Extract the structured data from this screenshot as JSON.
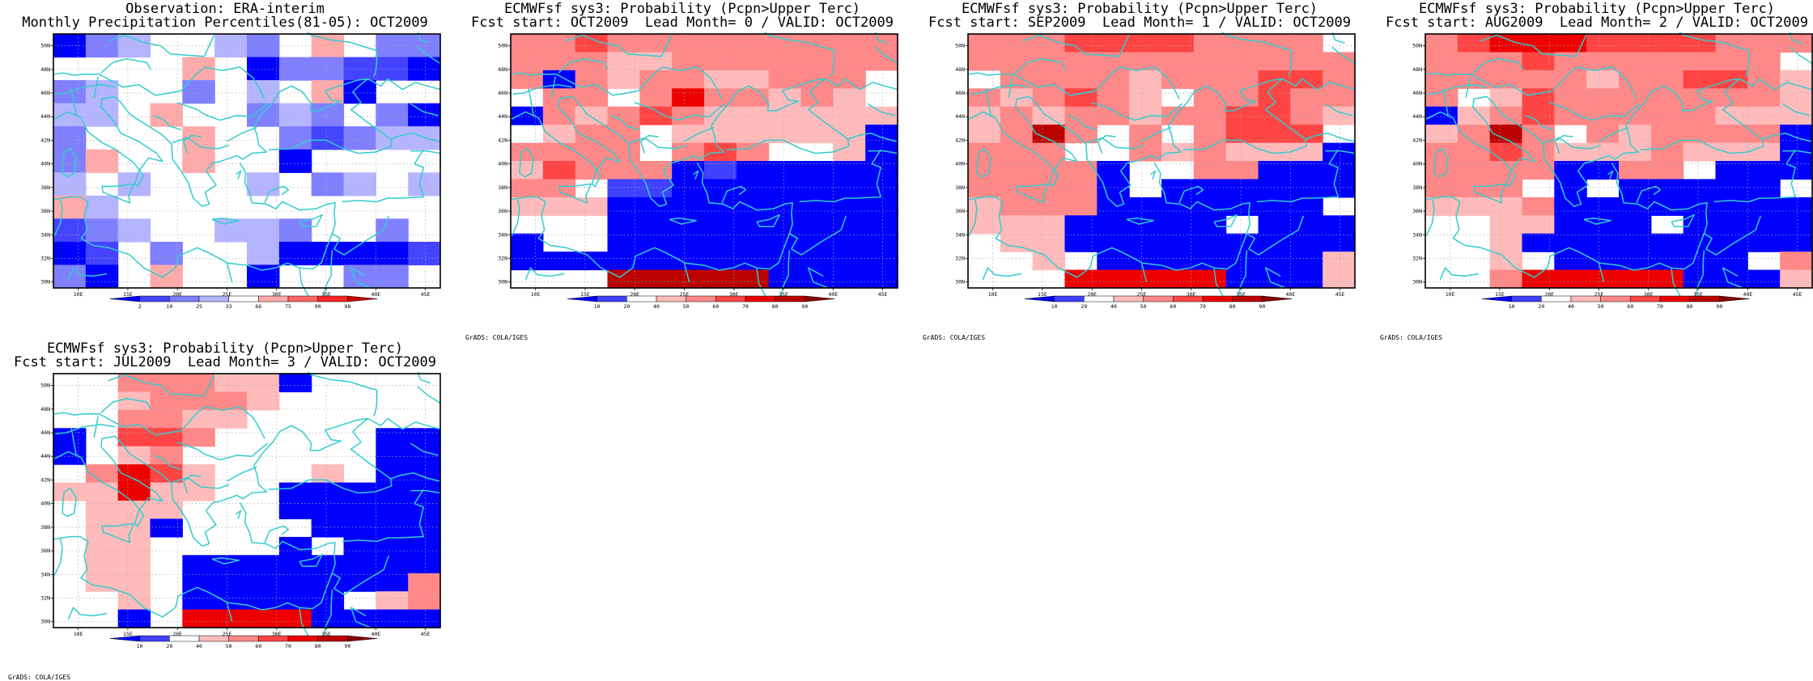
{
  "colors": {
    "coast": "#33cccc",
    "grid": "#aaaaaa",
    "frame": "#000000"
  },
  "axes": {
    "lat_labels": [
      "30N",
      "32N",
      "34N",
      "36N",
      "38N",
      "40N",
      "42N",
      "44N",
      "46N",
      "48N",
      "50N"
    ],
    "lon_labels": [
      "10E",
      "15E",
      "20E",
      "25E",
      "30E",
      "35E",
      "40E",
      "45E"
    ]
  },
  "obs_legend": {
    "labels": [
      "2",
      "10",
      "25",
      "33",
      "66",
      "75",
      "90",
      "98"
    ],
    "colors": [
      "#0000ff",
      "#4444ff",
      "#8080ff",
      "#b4b4ff",
      "#ffffff",
      "#ffaaaa",
      "#ff6666",
      "#ff2222",
      "#cc0000"
    ]
  },
  "prob_legend": {
    "labels": [
      "10",
      "20",
      "40",
      "50",
      "60",
      "70",
      "80",
      "90"
    ],
    "colors": [
      "#0000ff",
      "#4040ff",
      "#ffffff",
      "#ffbbbb",
      "#ff8888",
      "#ff4444",
      "#ee0000",
      "#bb0000",
      "#880000"
    ]
  },
  "credit": "GrADS: COLA/IGES",
  "panels": [
    {
      "title1": "Observation: ERA-interim",
      "title2": "Monthly Precipitation Percentiles(81-05): OCT2009",
      "has_credit": false,
      "legend": "obs",
      "grid": [
        [
          0,
          2,
          3,
          4,
          4,
          3,
          2,
          4,
          5,
          4,
          2,
          2
        ],
        [
          4,
          4,
          4,
          4,
          5,
          4,
          0,
          2,
          2,
          1,
          1,
          0
        ],
        [
          2,
          3,
          4,
          4,
          2,
          4,
          3,
          4,
          5,
          0,
          4,
          4
        ],
        [
          3,
          3,
          4,
          5,
          4,
          4,
          2,
          3,
          2,
          4,
          2,
          0
        ],
        [
          2,
          4,
          4,
          4,
          5,
          4,
          4,
          2,
          1,
          2,
          3,
          3
        ],
        [
          2,
          5,
          4,
          4,
          5,
          4,
          4,
          0,
          4,
          4,
          4,
          4
        ],
        [
          3,
          4,
          3,
          4,
          4,
          4,
          3,
          4,
          2,
          3,
          4,
          3
        ],
        [
          5,
          3,
          4,
          4,
          4,
          4,
          4,
          4,
          4,
          4,
          4,
          4
        ],
        [
          1,
          2,
          3,
          4,
          4,
          3,
          3,
          2,
          4,
          4,
          2,
          4
        ],
        [
          0,
          1,
          4,
          2,
          4,
          4,
          3,
          0,
          0,
          0,
          0,
          1
        ],
        [
          2,
          0,
          4,
          5,
          4,
          4,
          0,
          4,
          4,
          2,
          2,
          4
        ]
      ]
    },
    {
      "title1": "ECMWFsf sys3: Probability (Pcpn>Upper Terc)",
      "title2": "Fcst start: OCT2009  Lead Month= 0 / VALID: OCT2009",
      "has_credit": true,
      "legend": "prob",
      "grid": [
        [
          4,
          4,
          5,
          4,
          4,
          4,
          4,
          4,
          4,
          4,
          4,
          4
        ],
        [
          4,
          4,
          4,
          3,
          3,
          4,
          4,
          4,
          4,
          4,
          4,
          4
        ],
        [
          4,
          0,
          4,
          3,
          4,
          4,
          3,
          3,
          4,
          4,
          4,
          2
        ],
        [
          2,
          4,
          4,
          2,
          4,
          6,
          4,
          4,
          3,
          4,
          3,
          2
        ],
        [
          0,
          4,
          3,
          4,
          5,
          4,
          3,
          3,
          3,
          3,
          3,
          3
        ],
        [
          2,
          3,
          4,
          4,
          2,
          3,
          3,
          3,
          3,
          3,
          3,
          0
        ],
        [
          4,
          4,
          4,
          4,
          2,
          4,
          5,
          4,
          2,
          2,
          3,
          0
        ],
        [
          3,
          5,
          4,
          4,
          4,
          0,
          1,
          0,
          0,
          0,
          0,
          0
        ],
        [
          4,
          4,
          2,
          1,
          1,
          0,
          0,
          0,
          0,
          0,
          0,
          0
        ],
        [
          3,
          3,
          3,
          0,
          0,
          0,
          0,
          0,
          0,
          0,
          0,
          0
        ],
        [
          2,
          2,
          2,
          0,
          0,
          0,
          0,
          0,
          0,
          0,
          0,
          0
        ],
        [
          0,
          2,
          2,
          0,
          0,
          0,
          0,
          0,
          0,
          0,
          0,
          0
        ],
        [
          0,
          0,
          0,
          0,
          0,
          0,
          0,
          0,
          0,
          0,
          0,
          0
        ],
        [
          2,
          2,
          2,
          7,
          7,
          7,
          7,
          7,
          0,
          0,
          0,
          0
        ]
      ]
    },
    {
      "title1": "ECMWFsf sys3: Probability (Pcpn>Upper Terc)",
      "title2": "Fcst start: SEP2009  Lead Month= 1 / VALID: OCT2009",
      "has_credit": true,
      "legend": "prob",
      "grid": [
        [
          4,
          4,
          4,
          5,
          5,
          5,
          5,
          4,
          4,
          4,
          4,
          2
        ],
        [
          4,
          4,
          4,
          4,
          4,
          4,
          4,
          4,
          4,
          4,
          4,
          4
        ],
        [
          2,
          4,
          4,
          4,
          4,
          3,
          4,
          4,
          4,
          5,
          5,
          4
        ],
        [
          4,
          3,
          4,
          5,
          4,
          3,
          2,
          4,
          4,
          5,
          4,
          4
        ],
        [
          3,
          4,
          3,
          4,
          4,
          3,
          4,
          4,
          5,
          5,
          4,
          3
        ],
        [
          3,
          4,
          7,
          4,
          2,
          4,
          2,
          4,
          5,
          5,
          5,
          2
        ],
        [
          4,
          4,
          4,
          2,
          2,
          4,
          3,
          4,
          3,
          3,
          3,
          0
        ],
        [
          4,
          4,
          4,
          4,
          0,
          2,
          2,
          4,
          4,
          0,
          0,
          0
        ],
        [
          4,
          4,
          4,
          4,
          0,
          2,
          0,
          0,
          0,
          0,
          0,
          0
        ],
        [
          3,
          4,
          4,
          4,
          0,
          0,
          0,
          0,
          0,
          0,
          0,
          2
        ],
        [
          3,
          3,
          3,
          0,
          0,
          0,
          0,
          0,
          2,
          0,
          0,
          0
        ],
        [
          2,
          3,
          3,
          0,
          0,
          0,
          0,
          0,
          0,
          0,
          0,
          0
        ],
        [
          2,
          2,
          3,
          2,
          0,
          0,
          0,
          0,
          0,
          0,
          0,
          3
        ],
        [
          2,
          2,
          2,
          6,
          6,
          6,
          6,
          6,
          0,
          0,
          0,
          3
        ]
      ]
    },
    {
      "title1": "ECMWFsf sys3: Probability (Pcpn>Upper Terc)",
      "title2": "Fcst start: AUG2009  Lead Month= 2 / VALID: OCT2009",
      "has_credit": true,
      "legend": "prob",
      "grid": [
        [
          4,
          5,
          6,
          6,
          6,
          5,
          5,
          5,
          5,
          4,
          4,
          4
        ],
        [
          4,
          4,
          4,
          5,
          4,
          4,
          4,
          4,
          4,
          4,
          4,
          2
        ],
        [
          4,
          4,
          4,
          4,
          4,
          3,
          4,
          4,
          5,
          5,
          4,
          3
        ],
        [
          4,
          2,
          3,
          5,
          4,
          4,
          4,
          4,
          4,
          4,
          4,
          3
        ],
        [
          0,
          3,
          4,
          5,
          4,
          4,
          4,
          4,
          4,
          3,
          3,
          3
        ],
        [
          3,
          4,
          7,
          4,
          2,
          4,
          3,
          4,
          4,
          4,
          4,
          0
        ],
        [
          4,
          4,
          5,
          4,
          3,
          3,
          3,
          4,
          3,
          3,
          3,
          0
        ],
        [
          4,
          4,
          4,
          4,
          0,
          0,
          4,
          4,
          2,
          0,
          0,
          0
        ],
        [
          4,
          4,
          4,
          2,
          0,
          2,
          0,
          0,
          0,
          0,
          0,
          2
        ],
        [
          3,
          3,
          3,
          4,
          0,
          0,
          0,
          0,
          0,
          0,
          0,
          0
        ],
        [
          2,
          2,
          3,
          3,
          0,
          0,
          0,
          2,
          0,
          0,
          0,
          0
        ],
        [
          2,
          2,
          3,
          0,
          0,
          0,
          0,
          0,
          0,
          0,
          0,
          0
        ],
        [
          2,
          2,
          3,
          2,
          0,
          0,
          0,
          0,
          0,
          0,
          2,
          4
        ],
        [
          2,
          2,
          4,
          6,
          6,
          6,
          6,
          6,
          0,
          0,
          0,
          3
        ]
      ]
    },
    {
      "title1": "ECMWFsf sys3: Probability (Pcpn>Upper Terc)",
      "title2": "Fcst start: JUL2009  Lead Month= 3 / VALID: OCT2009",
      "has_credit": true,
      "legend": "prob",
      "grid": [
        [
          2,
          2,
          4,
          4,
          4,
          3,
          3,
          0,
          2,
          2,
          2,
          2
        ],
        [
          2,
          2,
          3,
          4,
          4,
          4,
          3,
          2,
          2,
          2,
          2,
          2
        ],
        [
          2,
          2,
          4,
          4,
          3,
          3,
          2,
          2,
          2,
          2,
          2,
          2
        ],
        [
          0,
          2,
          5,
          5,
          4,
          2,
          2,
          2,
          2,
          2,
          0,
          0
        ],
        [
          0,
          2,
          3,
          4,
          2,
          2,
          2,
          2,
          2,
          2,
          0,
          0
        ],
        [
          2,
          4,
          6,
          5,
          3,
          2,
          2,
          2,
          3,
          2,
          0,
          0
        ],
        [
          3,
          3,
          6,
          3,
          3,
          2,
          2,
          0,
          0,
          0,
          0,
          0
        ],
        [
          2,
          3,
          3,
          3,
          2,
          2,
          2,
          0,
          0,
          0,
          0,
          0
        ],
        [
          2,
          3,
          3,
          0,
          2,
          2,
          2,
          2,
          0,
          0,
          0,
          0
        ],
        [
          2,
          3,
          3,
          2,
          2,
          2,
          2,
          0,
          2,
          0,
          0,
          0
        ],
        [
          2,
          3,
          3,
          2,
          0,
          0,
          0,
          0,
          0,
          0,
          0,
          0
        ],
        [
          2,
          3,
          3,
          2,
          0,
          0,
          0,
          0,
          0,
          0,
          0,
          4
        ],
        [
          2,
          2,
          3,
          2,
          0,
          0,
          0,
          0,
          0,
          2,
          3,
          4
        ],
        [
          2,
          2,
          0,
          2,
          6,
          6,
          6,
          6,
          0,
          0,
          0,
          0
        ]
      ]
    }
  ]
}
